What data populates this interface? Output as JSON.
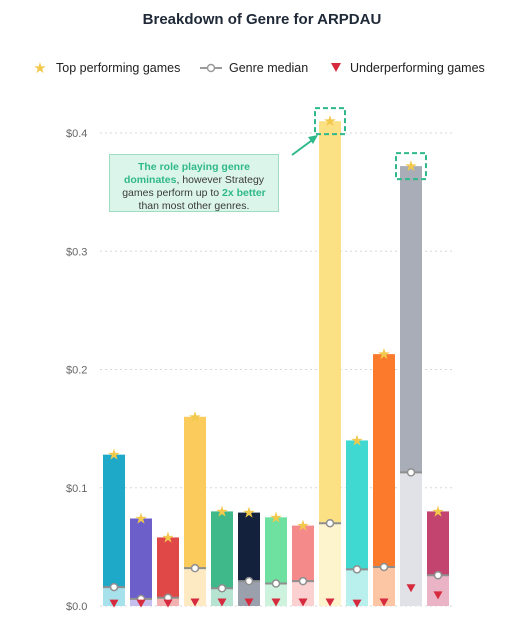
{
  "chart_data": {
    "type": "bar",
    "title": "Breakdown of Genre for ARPDAU",
    "legend": {
      "placement": "top",
      "items": [
        {
          "label": "Top performing games",
          "icon": "star-icon",
          "color": "#f2c94c"
        },
        {
          "label": "Genre median",
          "icon": "dot-line-icon",
          "color": "#9a9a9a"
        },
        {
          "label": "Underperforming games",
          "icon": "triangle-down-icon",
          "color": "#d62b3f"
        }
      ]
    },
    "y_axis": {
      "ylim": [
        0,
        0.42
      ],
      "ticks": [
        "$0.0",
        "$0.1",
        "$0.2",
        "$0.3",
        "$0.4"
      ],
      "tick_values": [
        0,
        0.1,
        0.2,
        0.3,
        0.4
      ]
    },
    "grid": true,
    "categories": [],
    "series": [
      {
        "top": 0.128,
        "median": 0.016,
        "under": 0.002,
        "color": "#1fa9c9",
        "light": "#a6e1ec"
      },
      {
        "top": 0.074,
        "median": 0.006,
        "under": 0.002,
        "color": "#6c5fc9",
        "light": "#c4bfec"
      },
      {
        "top": 0.058,
        "median": 0.007,
        "under": 0.002,
        "color": "#e04848",
        "light": "#f3b2b2"
      },
      {
        "top": 0.16,
        "median": 0.032,
        "under": 0.003,
        "color": "#fbcb5c",
        "light": "#fde9c2"
      },
      {
        "top": 0.08,
        "median": 0.015,
        "under": 0.003,
        "color": "#3fb98a",
        "light": "#b7e4d2"
      },
      {
        "top": 0.079,
        "median": 0.021,
        "under": 0.003,
        "color": "#14213d",
        "light": "#9aa1ad"
      },
      {
        "top": 0.075,
        "median": 0.019,
        "under": 0.003,
        "color": "#6ee0a0",
        "light": "#cdf3de"
      },
      {
        "top": 0.068,
        "median": 0.021,
        "under": 0.003,
        "color": "#f48a8a",
        "light": "#fbd0d0"
      },
      {
        "top": 0.41,
        "median": 0.07,
        "under": 0.003,
        "color": "#fbe084",
        "light": "#fdf3cc"
      },
      {
        "top": 0.14,
        "median": 0.031,
        "under": 0.002,
        "color": "#40d9d2",
        "light": "#b9f0ed"
      },
      {
        "top": 0.213,
        "median": 0.033,
        "under": 0.003,
        "color": "#fb7a2c",
        "light": "#fcc6a4"
      },
      {
        "top": 0.372,
        "median": 0.113,
        "under": 0.015,
        "color": "#a8adb8",
        "light": "#e0e2e7"
      },
      {
        "top": 0.08,
        "median": 0.026,
        "under": 0.009,
        "color": "#c3456f",
        "light": "#eab3c6"
      }
    ],
    "annotation": {
      "parts": [
        {
          "text": "The role playing genre dominates",
          "highlight": true
        },
        {
          "text": ", however Strategy games perform up to ",
          "highlight": false
        },
        {
          "text": "2x better",
          "highlight": true
        },
        {
          "text": " than most other genres.",
          "highlight": false
        }
      ]
    },
    "colors": {
      "star": "#f2c94c",
      "median_line": "#8f8f8f",
      "triangle": "#d62b3f",
      "callout": "#2fb98a"
    }
  }
}
